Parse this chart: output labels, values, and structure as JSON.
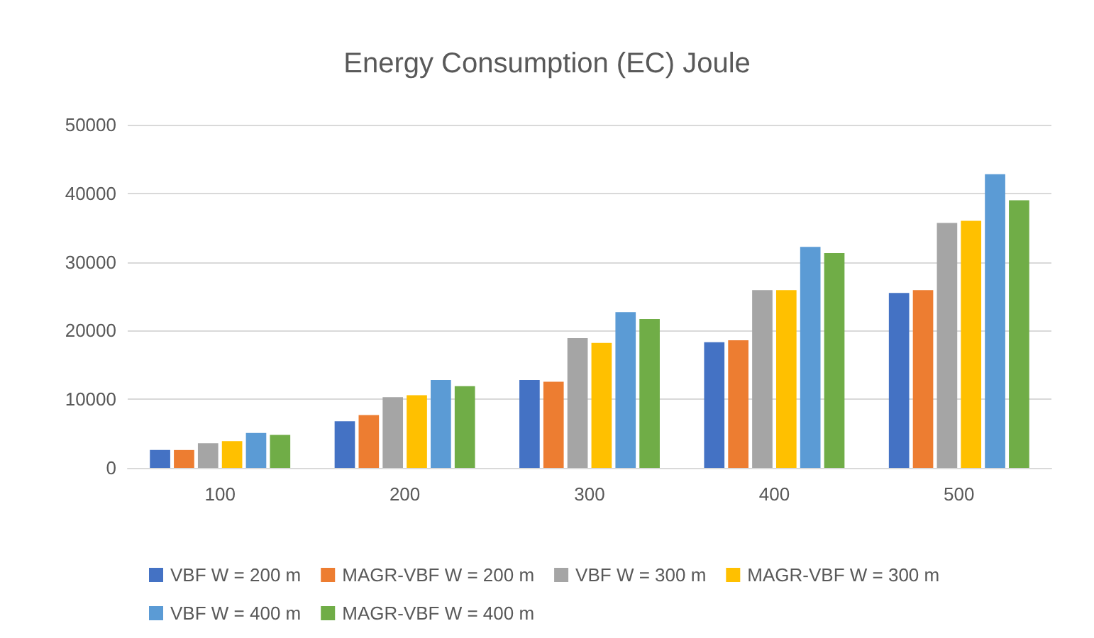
{
  "chart_data": {
    "type": "bar",
    "title": "Energy Consumption (EC) Joule",
    "categories": [
      "100",
      "200",
      "300",
      "400",
      "500"
    ],
    "series": [
      {
        "name": "VBF W = 200 m",
        "color": "#4472c4",
        "values": [
          2600,
          6800,
          12800,
          18300,
          25500
        ]
      },
      {
        "name": "MAGR-VBF W = 200 m",
        "color": "#ed7d31",
        "values": [
          2600,
          7700,
          12550,
          18600,
          25900
        ]
      },
      {
        "name": "VBF W = 300 m",
        "color": "#a5a5a5",
        "values": [
          3600,
          10300,
          18900,
          25900,
          35700
        ]
      },
      {
        "name": "MAGR-VBF W = 300 m",
        "color": "#ffc000",
        "values": [
          3900,
          10600,
          18200,
          25900,
          36000
        ]
      },
      {
        "name": "VBF W = 400 m",
        "color": "#5b9bd5",
        "values": [
          5100,
          12800,
          22700,
          32200,
          42800
        ]
      },
      {
        "name": "MAGR-VBF W = 400 m",
        "color": "#70ad47",
        "values": [
          4800,
          11900,
          21700,
          31300,
          39000
        ]
      }
    ],
    "ylim": [
      0,
      50000
    ],
    "yticks": [
      0,
      10000,
      20000,
      30000,
      40000,
      50000
    ],
    "grid": "y",
    "legend": "bottom"
  }
}
